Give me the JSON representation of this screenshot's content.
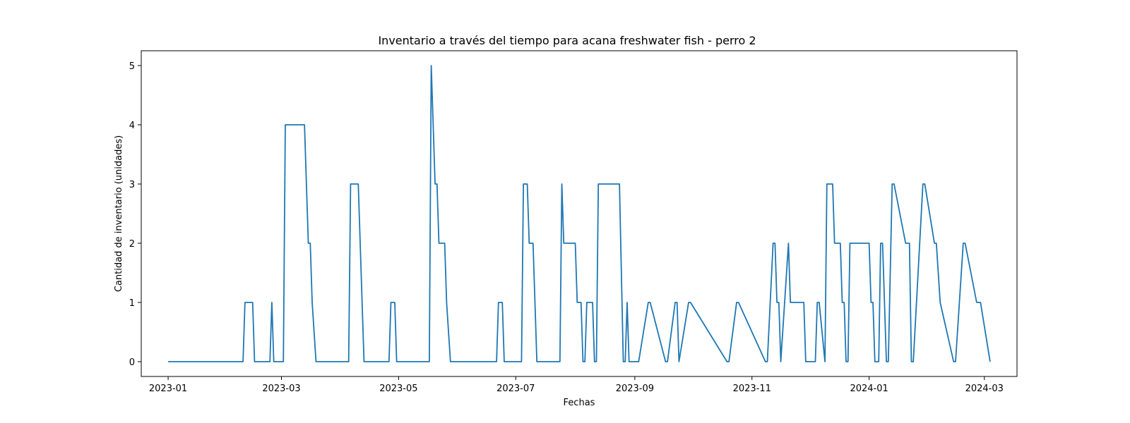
{
  "chart_data": {
    "type": "line",
    "title": "Inventario a través del tiempo para acana freshwater fish - perro 2",
    "xlabel": "Fechas",
    "ylabel": "Cantidad de inventario (unidades)",
    "x_ticks": [
      "2023-01",
      "2023-03",
      "2023-05",
      "2023-07",
      "2023-09",
      "2023-11",
      "2024-01",
      "2024-03"
    ],
    "y_ticks": [
      "0",
      "1",
      "2",
      "3",
      "4",
      "5"
    ],
    "xlim": [
      "2022-12-18",
      "2024-03-18"
    ],
    "ylim": [
      -0.25,
      5.25
    ],
    "grid": false,
    "line_color": "#1f77b4",
    "series": [
      {
        "x": [
          "2023-01-01",
          "2023-02-09",
          "2023-02-10",
          "2023-02-14",
          "2023-02-15",
          "2023-02-23",
          "2023-02-24",
          "2023-02-25",
          "2023-03-02",
          "2023-03-03",
          "2023-03-13",
          "2023-03-15",
          "2023-03-16",
          "2023-03-17",
          "2023-03-19",
          "2023-04-05",
          "2023-04-06",
          "2023-04-10",
          "2023-04-13",
          "2023-04-26",
          "2023-04-27",
          "2023-04-29",
          "2023-04-30",
          "2023-05-17",
          "2023-05-18",
          "2023-05-20",
          "2023-05-21",
          "2023-05-22",
          "2023-05-25",
          "2023-05-26",
          "2023-05-28",
          "2023-06-21",
          "2023-06-22",
          "2023-06-24",
          "2023-06-25",
          "2023-07-04",
          "2023-07-05",
          "2023-07-07",
          "2023-07-08",
          "2023-07-10",
          "2023-07-11",
          "2023-07-12",
          "2023-07-24",
          "2023-07-25",
          "2023-07-26",
          "2023-08-01",
          "2023-08-02",
          "2023-08-04",
          "2023-08-05",
          "2023-08-06",
          "2023-08-07",
          "2023-08-10",
          "2023-08-11",
          "2023-08-12",
          "2023-08-13",
          "2023-08-21",
          "2023-08-23",
          "2023-08-24",
          "2023-08-26",
          "2023-08-27",
          "2023-08-28",
          "2023-08-29",
          "2023-09-03",
          "2023-09-08",
          "2023-09-09",
          "2023-09-17",
          "2023-09-18",
          "2023-09-22",
          "2023-09-23",
          "2023-09-24",
          "2023-09-29",
          "2023-09-30",
          "2023-10-19",
          "2023-10-20",
          "2023-10-24",
          "2023-10-25",
          "2023-11-08",
          "2023-11-09",
          "2023-11-12",
          "2023-11-13",
          "2023-11-14",
          "2023-11-15",
          "2023-11-16",
          "2023-11-20",
          "2023-11-21",
          "2023-11-28",
          "2023-11-29",
          "2023-12-04",
          "2023-12-05",
          "2023-12-06",
          "2023-12-09",
          "2023-12-10",
          "2023-12-13",
          "2023-12-14",
          "2023-12-17",
          "2023-12-18",
          "2023-12-19",
          "2023-12-20",
          "2023-12-21",
          "2023-12-22",
          "2024-01-01",
          "2024-01-02",
          "2024-01-03",
          "2024-01-04",
          "2024-01-06",
          "2024-01-07",
          "2024-01-08",
          "2024-01-09",
          "2024-01-10",
          "2024-01-11",
          "2024-01-13",
          "2024-01-14",
          "2024-01-20",
          "2024-01-22",
          "2024-01-23",
          "2024-01-24",
          "2024-01-29",
          "2024-01-30",
          "2024-02-04",
          "2024-02-05",
          "2024-02-07",
          "2024-02-14",
          "2024-02-15",
          "2024-02-19",
          "2024-02-20",
          "2024-02-26",
          "2024-02-28",
          "2024-03-04"
        ],
        "y": [
          0,
          0,
          1,
          1,
          0,
          0,
          1,
          0,
          0,
          4,
          4,
          2,
          2,
          1,
          0,
          0,
          3,
          3,
          0,
          0,
          1,
          1,
          0,
          0,
          5,
          3,
          3,
          2,
          2,
          1,
          0,
          0,
          1,
          1,
          0,
          0,
          3,
          3,
          2,
          2,
          1,
          0,
          0,
          3,
          2,
          2,
          1,
          1,
          0,
          0,
          1,
          1,
          0,
          0,
          3,
          3,
          3,
          3,
          0,
          0,
          1,
          0,
          0,
          1,
          1,
          0,
          0,
          1,
          1,
          0,
          1,
          1,
          0,
          0,
          1,
          1,
          0,
          0,
          2,
          2,
          1,
          1,
          0,
          2,
          1,
          1,
          0,
          0,
          1,
          1,
          0,
          3,
          3,
          2,
          2,
          1,
          1,
          0,
          0,
          2,
          2,
          1,
          1,
          0,
          0,
          2,
          2,
          1,
          0,
          0,
          3,
          3,
          2,
          2,
          0,
          0,
          3,
          3,
          2,
          2,
          1,
          0,
          0,
          2,
          2,
          1,
          1,
          0
        ]
      }
    ]
  }
}
